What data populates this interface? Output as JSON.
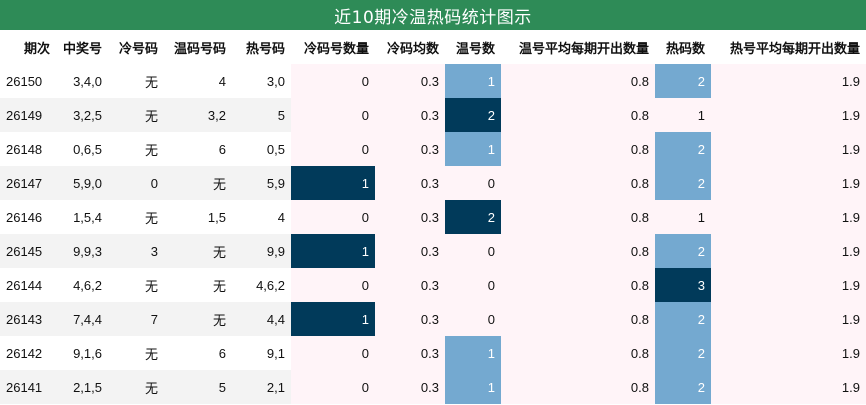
{
  "title": "近10期冷温热码统计图示",
  "colors": {
    "title_bg": "#2e8b57",
    "pink_bg": "#fff4f8",
    "highlight_dark": "#013a5a",
    "highlight_light": "#74a9d0",
    "alt_row": "#f3f3f3"
  },
  "chart_data": {
    "type": "table",
    "title": "近10期冷温热码统计图示",
    "columns": [
      "期次",
      "中奖号",
      "冷号码",
      "温码号码",
      "热号码",
      "冷码号数量",
      "冷码均数",
      "温号数",
      "温号平均每期开出数量",
      "热码数",
      "热号平均每期开出数量"
    ],
    "rows": [
      {
        "period": "26150",
        "winning": "3,4,0",
        "cold": "无",
        "warm": "4",
        "hot": "3,0",
        "cold_count": "0",
        "cold_avg": "0.3",
        "warm_count": "1",
        "warm_avg": "0.8",
        "hot_count": "2",
        "hot_avg": "1.9",
        "cold_hl": "",
        "warm_hl": "light",
        "hot_hl": "light"
      },
      {
        "period": "26149",
        "winning": "3,2,5",
        "cold": "无",
        "warm": "3,2",
        "hot": "5",
        "cold_count": "0",
        "cold_avg": "0.3",
        "warm_count": "2",
        "warm_avg": "0.8",
        "hot_count": "1",
        "hot_avg": "1.9",
        "cold_hl": "",
        "warm_hl": "dark",
        "hot_hl": ""
      },
      {
        "period": "26148",
        "winning": "0,6,5",
        "cold": "无",
        "warm": "6",
        "hot": "0,5",
        "cold_count": "0",
        "cold_avg": "0.3",
        "warm_count": "1",
        "warm_avg": "0.8",
        "hot_count": "2",
        "hot_avg": "1.9",
        "cold_hl": "",
        "warm_hl": "light",
        "hot_hl": "light"
      },
      {
        "period": "26147",
        "winning": "5,9,0",
        "cold": "0",
        "warm": "无",
        "hot": "5,9",
        "cold_count": "1",
        "cold_avg": "0.3",
        "warm_count": "0",
        "warm_avg": "0.8",
        "hot_count": "2",
        "hot_avg": "1.9",
        "cold_hl": "dark",
        "warm_hl": "",
        "hot_hl": "light"
      },
      {
        "period": "26146",
        "winning": "1,5,4",
        "cold": "无",
        "warm": "1,5",
        "hot": "4",
        "cold_count": "0",
        "cold_avg": "0.3",
        "warm_count": "2",
        "warm_avg": "0.8",
        "hot_count": "1",
        "hot_avg": "1.9",
        "cold_hl": "",
        "warm_hl": "dark",
        "hot_hl": ""
      },
      {
        "period": "26145",
        "winning": "9,9,3",
        "cold": "3",
        "warm": "无",
        "hot": "9,9",
        "cold_count": "1",
        "cold_avg": "0.3",
        "warm_count": "0",
        "warm_avg": "0.8",
        "hot_count": "2",
        "hot_avg": "1.9",
        "cold_hl": "dark",
        "warm_hl": "",
        "hot_hl": "light"
      },
      {
        "period": "26144",
        "winning": "4,6,2",
        "cold": "无",
        "warm": "无",
        "hot": "4,6,2",
        "cold_count": "0",
        "cold_avg": "0.3",
        "warm_count": "0",
        "warm_avg": "0.8",
        "hot_count": "3",
        "hot_avg": "1.9",
        "cold_hl": "",
        "warm_hl": "",
        "hot_hl": "dark"
      },
      {
        "period": "26143",
        "winning": "7,4,4",
        "cold": "7",
        "warm": "无",
        "hot": "4,4",
        "cold_count": "1",
        "cold_avg": "0.3",
        "warm_count": "0",
        "warm_avg": "0.8",
        "hot_count": "2",
        "hot_avg": "1.9",
        "cold_hl": "dark",
        "warm_hl": "",
        "hot_hl": "light"
      },
      {
        "period": "26142",
        "winning": "9,1,6",
        "cold": "无",
        "warm": "6",
        "hot": "9,1",
        "cold_count": "0",
        "cold_avg": "0.3",
        "warm_count": "1",
        "warm_avg": "0.8",
        "hot_count": "2",
        "hot_avg": "1.9",
        "cold_hl": "",
        "warm_hl": "light",
        "hot_hl": "light"
      },
      {
        "period": "26141",
        "winning": "2,1,5",
        "cold": "无",
        "warm": "5",
        "hot": "2,1",
        "cold_count": "0",
        "cold_avg": "0.3",
        "warm_count": "1",
        "warm_avg": "0.8",
        "hot_count": "2",
        "hot_avg": "1.9",
        "cold_hl": "",
        "warm_hl": "light",
        "hot_hl": "light"
      }
    ]
  }
}
